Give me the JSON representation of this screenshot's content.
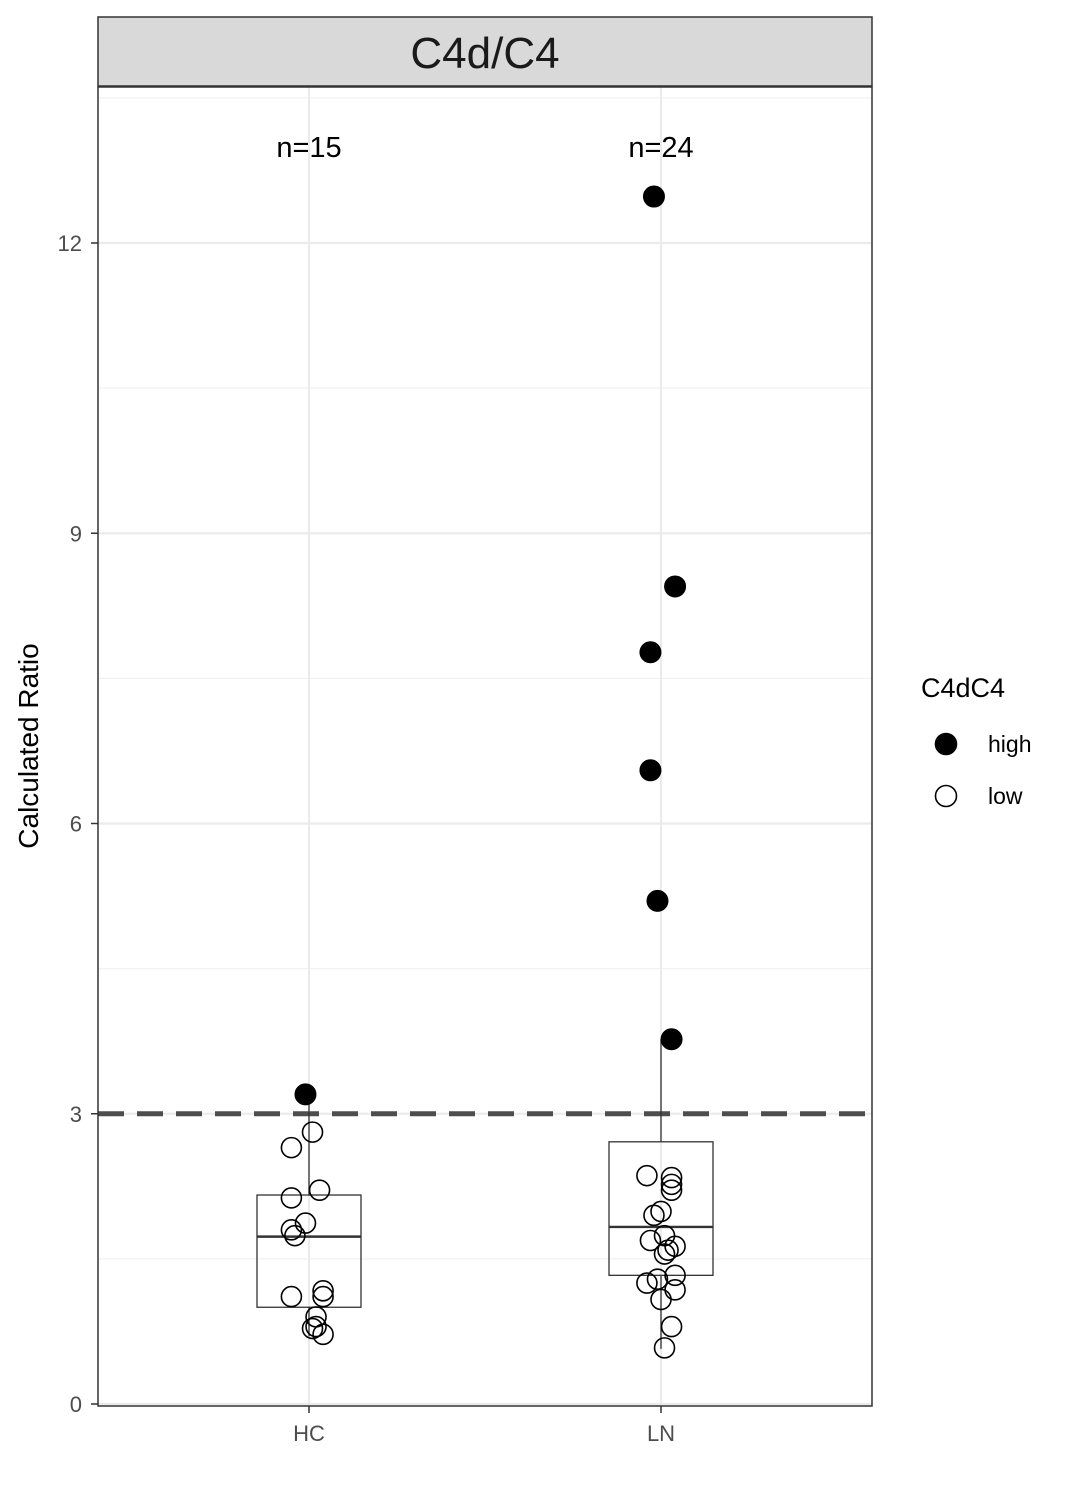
{
  "chart_data": {
    "type": "box",
    "title": "C4d/C4",
    "ylabel": "Calculated Ratio",
    "xlabel": "",
    "categories": [
      "HC",
      "LN"
    ],
    "ylim": [
      0,
      13.55
    ],
    "yticks": [
      0,
      3,
      6,
      9,
      12
    ],
    "grid": true,
    "threshold": 3,
    "counts": [
      "n=15",
      "n=24"
    ],
    "legend": {
      "title": "C4dC4",
      "position": "right",
      "items": [
        {
          "label": "high",
          "fill": "#000000"
        },
        {
          "label": "low",
          "fill": "#ffffff"
        }
      ]
    },
    "boxes": [
      {
        "category": "HC",
        "q1": 1.0,
        "median": 1.73,
        "q3": 2.16,
        "whisker_low": 0.7,
        "whisker_high": 3.2
      },
      {
        "category": "LN",
        "q1": 1.33,
        "median": 1.83,
        "q3": 2.71,
        "whisker_low": 0.57,
        "whisker_high": 3.77
      }
    ],
    "points": [
      {
        "category": "HC",
        "x": -0.01,
        "y": 3.2,
        "group": "high"
      },
      {
        "category": "HC",
        "x": 0.01,
        "y": 2.81,
        "group": "low"
      },
      {
        "category": "HC",
        "x": -0.05,
        "y": 2.65,
        "group": "low"
      },
      {
        "category": "HC",
        "x": 0.03,
        "y": 2.21,
        "group": "low"
      },
      {
        "category": "HC",
        "x": -0.05,
        "y": 2.13,
        "group": "low"
      },
      {
        "category": "HC",
        "x": -0.01,
        "y": 1.87,
        "group": "low"
      },
      {
        "category": "HC",
        "x": -0.05,
        "y": 1.8,
        "group": "low"
      },
      {
        "category": "HC",
        "x": -0.04,
        "y": 1.74,
        "group": "low"
      },
      {
        "category": "HC",
        "x": 0.04,
        "y": 1.17,
        "group": "low"
      },
      {
        "category": "HC",
        "x": 0.04,
        "y": 1.11,
        "group": "low"
      },
      {
        "category": "HC",
        "x": -0.05,
        "y": 1.11,
        "group": "low"
      },
      {
        "category": "HC",
        "x": 0.02,
        "y": 0.9,
        "group": "low"
      },
      {
        "category": "HC",
        "x": 0.02,
        "y": 0.8,
        "group": "low"
      },
      {
        "category": "HC",
        "x": 0.01,
        "y": 0.78,
        "group": "low"
      },
      {
        "category": "HC",
        "x": 0.04,
        "y": 0.72,
        "group": "low"
      },
      {
        "category": "LN",
        "x": -0.02,
        "y": 12.48,
        "group": "high"
      },
      {
        "category": "LN",
        "x": 0.04,
        "y": 8.45,
        "group": "high"
      },
      {
        "category": "LN",
        "x": -0.03,
        "y": 7.77,
        "group": "high"
      },
      {
        "category": "LN",
        "x": -0.03,
        "y": 6.55,
        "group": "high"
      },
      {
        "category": "LN",
        "x": -0.01,
        "y": 5.2,
        "group": "high"
      },
      {
        "category": "LN",
        "x": 0.03,
        "y": 3.77,
        "group": "high"
      },
      {
        "category": "LN",
        "x": -0.04,
        "y": 2.36,
        "group": "low"
      },
      {
        "category": "LN",
        "x": 0.03,
        "y": 2.34,
        "group": "low"
      },
      {
        "category": "LN",
        "x": 0.03,
        "y": 2.27,
        "group": "low"
      },
      {
        "category": "LN",
        "x": 0.03,
        "y": 2.21,
        "group": "low"
      },
      {
        "category": "LN",
        "x": 0.0,
        "y": 1.99,
        "group": "low"
      },
      {
        "category": "LN",
        "x": -0.02,
        "y": 1.95,
        "group": "low"
      },
      {
        "category": "LN",
        "x": 0.01,
        "y": 1.74,
        "group": "low"
      },
      {
        "category": "LN",
        "x": -0.03,
        "y": 1.69,
        "group": "low"
      },
      {
        "category": "LN",
        "x": 0.04,
        "y": 1.63,
        "group": "low"
      },
      {
        "category": "LN",
        "x": 0.02,
        "y": 1.59,
        "group": "low"
      },
      {
        "category": "LN",
        "x": 0.01,
        "y": 1.55,
        "group": "low"
      },
      {
        "category": "LN",
        "x": 0.04,
        "y": 1.33,
        "group": "low"
      },
      {
        "category": "LN",
        "x": -0.01,
        "y": 1.29,
        "group": "low"
      },
      {
        "category": "LN",
        "x": -0.04,
        "y": 1.25,
        "group": "low"
      },
      {
        "category": "LN",
        "x": 0.04,
        "y": 1.18,
        "group": "low"
      },
      {
        "category": "LN",
        "x": 0.0,
        "y": 1.08,
        "group": "low"
      },
      {
        "category": "LN",
        "x": 0.03,
        "y": 0.8,
        "group": "low"
      },
      {
        "category": "LN",
        "x": 0.01,
        "y": 0.58,
        "group": "low"
      }
    ]
  }
}
